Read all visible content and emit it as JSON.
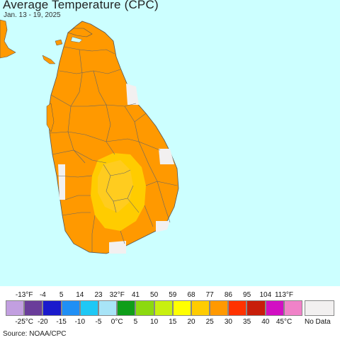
{
  "map": {
    "title": "Average Temperature (CPC)",
    "subtitle": "Jan. 13 - 19, 2025",
    "source": "Source: NOAA/CPC",
    "colors": {
      "ocean": "#ccffff",
      "land_main": "#ff9900",
      "land_warm": "#ffcc00",
      "no_data": "#f2f0f0",
      "border": "#555555"
    }
  },
  "legend": {
    "f_labels": [
      "-13°F",
      "-4",
      "5",
      "14",
      "23",
      "32°F",
      "41",
      "50",
      "59",
      "68",
      "77",
      "86",
      "95",
      "104",
      "113°F"
    ],
    "c_labels": [
      "-25°C",
      "-20",
      "-15",
      "-10",
      "-5",
      "0°C",
      "5",
      "10",
      "15",
      "20",
      "25",
      "30",
      "35",
      "40",
      "45°C"
    ],
    "colors": [
      "#c29fe0",
      "#6a3d9a",
      "#1a1acc",
      "#1f8ff5",
      "#1ec8f5",
      "#a8e4f7",
      "#0f9e1a",
      "#8cd90f",
      "#c8f00f",
      "#ffff00",
      "#ffcc00",
      "#ff9900",
      "#ff3300",
      "#c81e0a",
      "#d20fc3",
      "#f082c8"
    ],
    "no_data_label": "No Data"
  }
}
